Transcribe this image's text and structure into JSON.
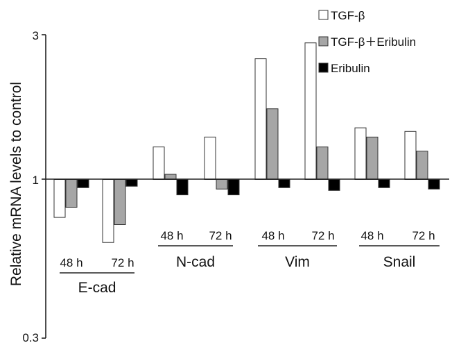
{
  "chart_data": {
    "type": "bar",
    "scale": "log",
    "ylabel": "Relative mRNA  levels to control",
    "yticks": [
      "3",
      "1",
      "0.3"
    ],
    "ylim": [
      0.3,
      3
    ],
    "baseline": 1,
    "grid": false,
    "legend_position": "top-right",
    "groups": [
      {
        "name": "E-cad",
        "timepoints": [
          "48 h",
          "72 h"
        ]
      },
      {
        "name": "N-cad",
        "timepoints": [
          "48 h",
          "72 h"
        ]
      },
      {
        "name": "Vim",
        "timepoints": [
          "48 h",
          "72 h"
        ]
      },
      {
        "name": "Snail",
        "timepoints": [
          "48 h",
          "72 h"
        ]
      }
    ],
    "categories": [
      "E-cad 48 h",
      "E-cad 72 h",
      "N-cad 48 h",
      "N-cad 72 h",
      "Vim 48 h",
      "Vim 72 h",
      "Snail 48 h",
      "Snail 72 h"
    ],
    "series": [
      {
        "name": "TGF-β",
        "color": "#ffffff",
        "values": [
          0.75,
          0.62,
          1.28,
          1.38,
          2.5,
          2.82,
          1.48,
          1.44
        ]
      },
      {
        "name": "TGF-β＋Eribulin",
        "color": "#a6a6a6",
        "values": [
          0.81,
          0.71,
          1.04,
          0.93,
          1.71,
          1.28,
          1.38,
          1.24
        ]
      },
      {
        "name": "Eribulin",
        "color": "#000000",
        "values": [
          0.94,
          0.95,
          0.89,
          0.89,
          0.94,
          0.92,
          0.94,
          0.93
        ]
      }
    ]
  }
}
